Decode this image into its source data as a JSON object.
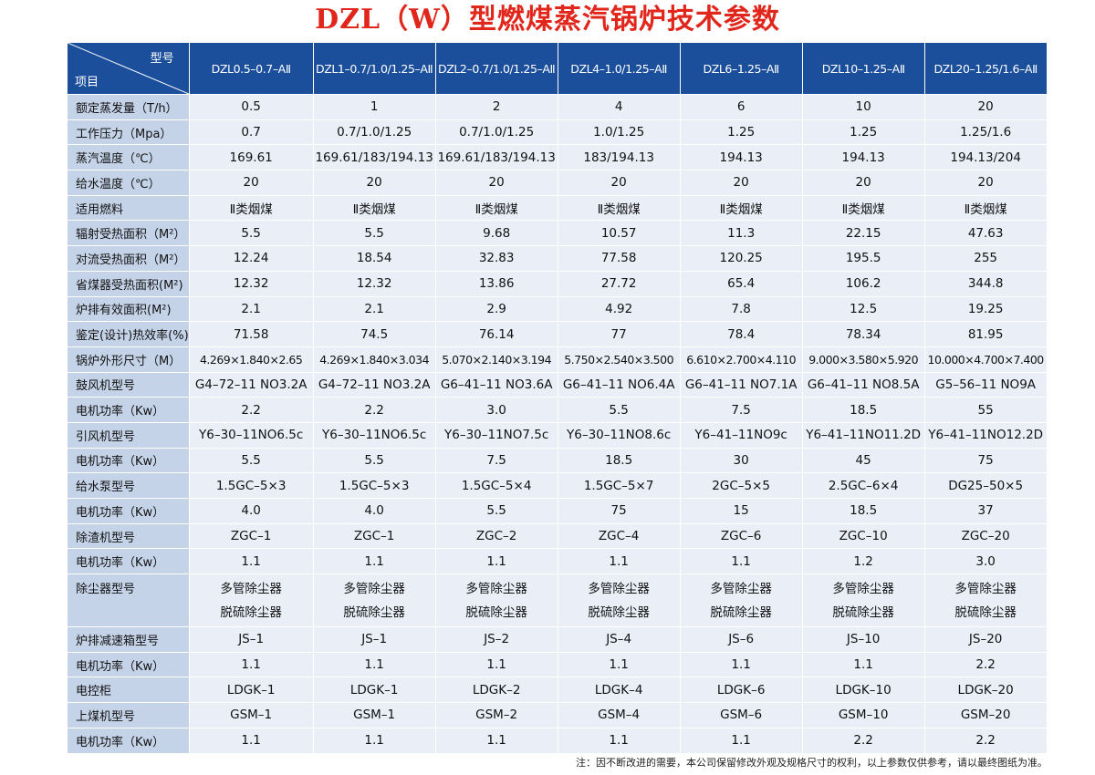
{
  "title": "DZL（W）型燃煤蒸汽锅炉技术参数",
  "header": {
    "corner_top": "型号",
    "corner_bottom": "项目",
    "models": [
      "DZL0.5–0.7–AⅡ",
      "DZL1–0.7/1.0/1.25–AⅡ",
      "DZL2–0.7/1.0/1.25–AⅡ",
      "DZL4–1.0/1.25–AⅡ",
      "DZL6–1.25–AⅡ",
      "DZL10–1.25–AⅡ",
      "DZL20–1.25/1.6–AⅡ"
    ]
  },
  "rows": [
    {
      "label": "额定蒸发量（T/h）",
      "values": [
        "0.5",
        "1",
        "2",
        "4",
        "6",
        "10",
        "20"
      ]
    },
    {
      "label": "工作压力（Mpa）",
      "values": [
        "0.7",
        "0.7/1.0/1.25",
        "0.7/1.0/1.25",
        "1.0/1.25",
        "1.25",
        "1.25",
        "1.25/1.6"
      ]
    },
    {
      "label": "蒸汽温度（℃）",
      "values": [
        "169.61",
        "169.61/183/194.13",
        "169.61/183/194.13",
        "183/194.13",
        "194.13",
        "194.13",
        "194.13/204"
      ]
    },
    {
      "label": "给水温度（℃）",
      "values": [
        "20",
        "20",
        "20",
        "20",
        "20",
        "20",
        "20"
      ]
    },
    {
      "label": "适用燃料",
      "values": [
        "Ⅱ类烟煤",
        "Ⅱ类烟煤",
        "Ⅱ类烟煤",
        "Ⅱ类烟煤",
        "Ⅱ类烟煤",
        "Ⅱ类烟煤",
        "Ⅱ类烟煤"
      ]
    },
    {
      "label": "辐射受热面积（M²）",
      "values": [
        "5.5",
        "5.5",
        "9.68",
        "10.57",
        "11.3",
        "22.15",
        "47.63"
      ]
    },
    {
      "label": "对流受热面积（M²）",
      "values": [
        "12.24",
        "18.54",
        "32.83",
        "77.58",
        "120.25",
        "195.5",
        "255"
      ]
    },
    {
      "label": "省煤器受热面积(M²)",
      "values": [
        "12.32",
        "12.32",
        "13.86",
        "27.72",
        "65.4",
        "106.2",
        "344.8"
      ]
    },
    {
      "label": "炉排有效面积(M²)",
      "values": [
        "2.1",
        "2.1",
        "2.9",
        "4.92",
        "7.8",
        "12.5",
        "19.25"
      ]
    },
    {
      "label": "鉴定(设计)热效率(%)",
      "values": [
        "71.58",
        "74.5",
        "76.14",
        "77",
        "78.4",
        "78.34",
        "81.95"
      ]
    },
    {
      "label": "锅炉外形尺寸（M）",
      "values": [
        "4.269×1.840×2.65",
        "4.269×1.840×3.034",
        "5.070×2.140×3.194",
        "5.750×2.540×3.500",
        "6.610×2.700×4.110",
        "9.000×3.580×5.920",
        "10.000×4.700×7.400"
      ]
    },
    {
      "label": "鼓风机型号",
      "values": [
        "G4–72–11 NO3.2A",
        "G4–72–11 NO3.2A",
        "G6–41–11 NO3.6A",
        "G6–41–11 NO6.4A",
        "G6–41–11 NO7.1A",
        "G6–41–11 NO8.5A",
        "G5–56–11 NO9A"
      ]
    },
    {
      "label": "电机功率（Kw）",
      "values": [
        "2.2",
        "2.2",
        "3.0",
        "5.5",
        "7.5",
        "18.5",
        "55"
      ]
    },
    {
      "label": "引风机型号",
      "values": [
        "Y6–30–11NO6.5c",
        "Y6–30–11NO6.5c",
        "Y6–30–11NO7.5c",
        "Y6–30–11NO8.6c",
        "Y6–41–11NO9c",
        "Y6–41–11NO11.2D",
        "Y6–41–11NO12.2D"
      ]
    },
    {
      "label": "电机功率（Kw）",
      "values": [
        "5.5",
        "5.5",
        "7.5",
        "18.5",
        "30",
        "45",
        "75"
      ]
    },
    {
      "label": "给水泵型号",
      "values": [
        "1.5GC–5×3",
        "1.5GC–5×3",
        "1.5GC–5×4",
        "1.5GC–5×7",
        "2GC–5×5",
        "2.5GC–6×4",
        "DG25–50×5"
      ]
    },
    {
      "label": "电机功率（Kw）",
      "values": [
        "4.0",
        "4.0",
        "5.5",
        "75",
        "15",
        "18.5",
        "37"
      ]
    },
    {
      "label": "除渣机型号",
      "values": [
        "ZGC–1",
        "ZGC–1",
        "ZGC–2",
        "ZGC–4",
        "ZGC–6",
        "ZGC–10",
        "ZGC–20"
      ]
    },
    {
      "label": "电机功率（Kw）",
      "values": [
        "1.1",
        "1.1",
        "1.1",
        "1.1",
        "1.1",
        "1.2",
        "3.0"
      ]
    },
    {
      "label": "除尘器型号",
      "values": [
        "多管除尘器",
        "多管除尘器",
        "多管除尘器",
        "多管除尘器",
        "多管除尘器",
        "多管除尘器",
        "多管除尘器"
      ],
      "values2": [
        "脱硫除尘器",
        "脱硫除尘器",
        "脱硫除尘器",
        "脱硫除尘器",
        "脱硫除尘器",
        "脱硫除尘器",
        "脱硫除尘器"
      ]
    },
    {
      "label": "炉排减速箱型号",
      "values": [
        "JS–1",
        "JS–1",
        "JS–2",
        "JS–4",
        "JS–6",
        "JS–10",
        "JS–20"
      ]
    },
    {
      "label": "电机功率（Kw）",
      "values": [
        "1.1",
        "1.1",
        "1.1",
        "1.1",
        "1.1",
        "1.1",
        "2.2"
      ]
    },
    {
      "label": "电控柜",
      "values": [
        "LDGK–1",
        "LDGK–1",
        "LDGK–2",
        "LDGK–4",
        "LDGK–6",
        "LDGK–10",
        "LDGK–20"
      ]
    },
    {
      "label": "上煤机型号",
      "values": [
        "GSM–1",
        "GSM–1",
        "GSM–2",
        "GSM–4",
        "GSM–6",
        "GSM–10",
        "GSM–20"
      ]
    },
    {
      "label": "电机功率（Kw）",
      "values": [
        "1.1",
        "1.1",
        "1.1",
        "1.1",
        "1.1",
        "2.2",
        "2.2"
      ]
    }
  ],
  "note": "注：因不断改进的需要，本公司保留修改外观及规格尺寸的权利，以上参数仅供参考，请以最终图纸为准。",
  "colors": {
    "title": "#e1261c",
    "header_bg": "#1b4f9b",
    "label_bg": "#c5d3e8",
    "cell_bg": "#e9eef7"
  }
}
